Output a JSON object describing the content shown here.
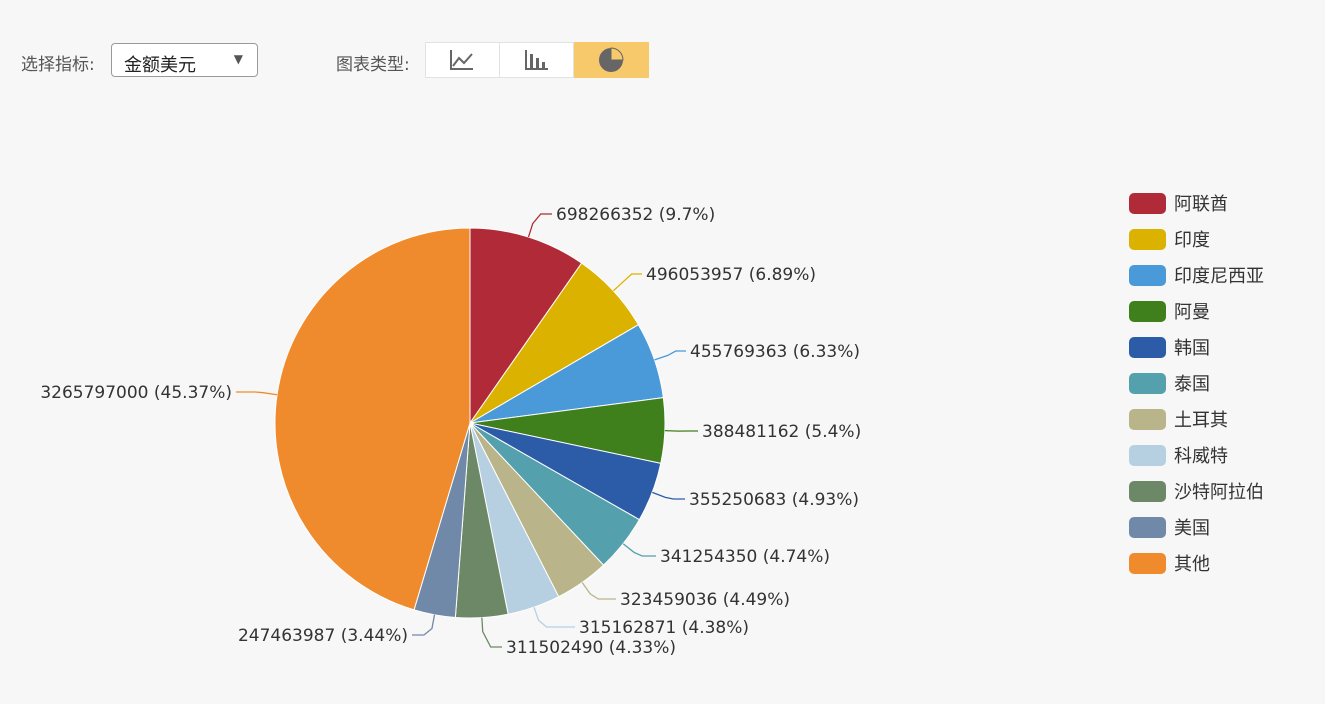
{
  "toolbar": {
    "metric_label": "选择指标:",
    "metric_value": "金额美元",
    "chart_type_label": "图表类型:",
    "chart_types": [
      {
        "icon": "line-chart-icon",
        "active": false
      },
      {
        "icon": "bar-chart-icon",
        "active": false
      },
      {
        "icon": "pie-chart-icon",
        "active": true
      }
    ]
  },
  "chart_data": {
    "type": "pie",
    "series": [
      {
        "name": "阿联酋",
        "value": 698266352,
        "percent": 9.7,
        "label": "698266352 (9.7%)",
        "color": "#b02a37"
      },
      {
        "name": "印度",
        "value": 496053957,
        "percent": 6.89,
        "label": "496053957 (6.89%)",
        "color": "#dcb200"
      },
      {
        "name": "印度尼西亚",
        "value": 455769363,
        "percent": 6.33,
        "label": "455769363 (6.33%)",
        "color": "#4a9ad9"
      },
      {
        "name": "阿曼",
        "value": 388481162,
        "percent": 5.4,
        "label": "388481162 (5.4%)",
        "color": "#3f7f1c"
      },
      {
        "name": "韩国",
        "value": 355250683,
        "percent": 4.93,
        "label": "355250683 (4.93%)",
        "color": "#2c5ca8"
      },
      {
        "name": "泰国",
        "value": 341254350,
        "percent": 4.74,
        "label": "341254350 (4.74%)",
        "color": "#54a0ac"
      },
      {
        "name": "土耳其",
        "value": 323459036,
        "percent": 4.49,
        "label": "323459036 (4.49%)",
        "color": "#b9b489"
      },
      {
        "name": "科威特",
        "value": 315162871,
        "percent": 4.38,
        "label": "315162871 (4.38%)",
        "color": "#b6d0e2"
      },
      {
        "name": "沙特阿拉伯",
        "value": 311502490,
        "percent": 4.33,
        "label": "311502490 (4.33%)",
        "color": "#6c8866"
      },
      {
        "name": "美国",
        "value": 247463987,
        "percent": 3.44,
        "label": "247463987 (3.44%)",
        "color": "#7189a8"
      },
      {
        "name": "其他",
        "value": 3265797000,
        "percent": 45.37,
        "label": "3265797000 (45.37%)",
        "color": "#ef8b2c"
      }
    ],
    "legend_position": "right"
  }
}
